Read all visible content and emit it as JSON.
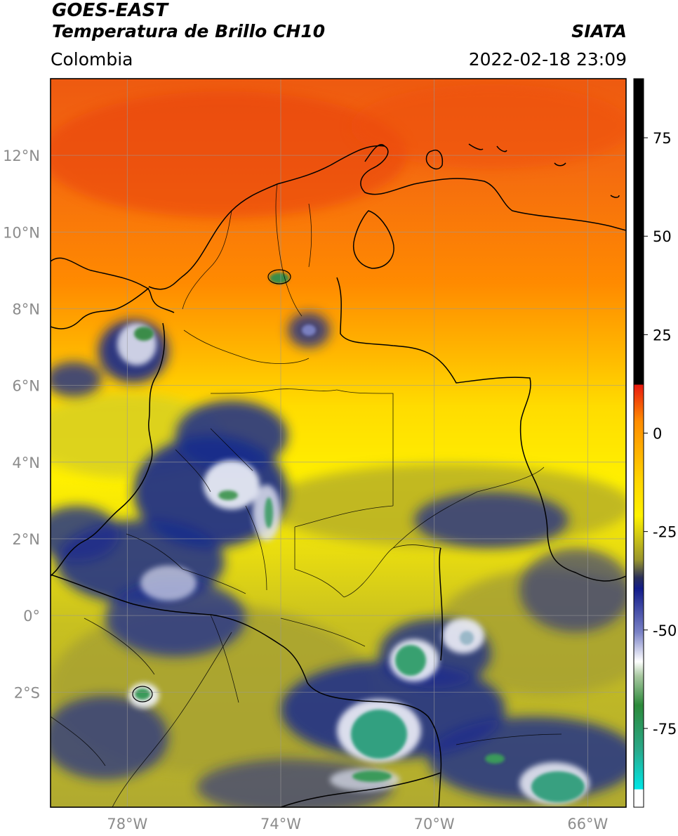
{
  "header": {
    "satellite": "GOES-EAST",
    "product": "Temperatura de Brillo CH10",
    "region": "Colombia",
    "organization": "SIATA",
    "datetime": "2022-02-18 23:09"
  },
  "map": {
    "extent": {
      "lon": [
        -80,
        -65
      ],
      "lat": [
        -5,
        14
      ]
    },
    "lon_ticks": [
      {
        "value": -78,
        "label": "78°W"
      },
      {
        "value": -74,
        "label": "74°W"
      },
      {
        "value": -70,
        "label": "70°W"
      },
      {
        "value": -66,
        "label": "66°W"
      }
    ],
    "lat_ticks": [
      {
        "value": 12,
        "label": "12°N"
      },
      {
        "value": 10,
        "label": "10°N"
      },
      {
        "value": 8,
        "label": "8°N"
      },
      {
        "value": 6,
        "label": "6°N"
      },
      {
        "value": 4,
        "label": "4°N"
      },
      {
        "value": 2,
        "label": "2°N"
      },
      {
        "value": 0,
        "label": "0°"
      },
      {
        "value": -2,
        "label": "2°S"
      }
    ],
    "gridlines": true
  },
  "colorbar": {
    "range": [
      -95,
      90
    ],
    "ticks": [
      {
        "value": 75,
        "label": "75"
      },
      {
        "value": 50,
        "label": "50"
      },
      {
        "value": 25,
        "label": "25"
      },
      {
        "value": 0,
        "label": "0"
      },
      {
        "value": -25,
        "label": "-25"
      },
      {
        "value": -50,
        "label": "-50"
      },
      {
        "value": -75,
        "label": "-75"
      }
    ]
  },
  "colors": {
    "warm_top": "#f05010",
    "orange": "#ff9a00",
    "yellow": "#ffe800",
    "olive": "#b8b22a",
    "navy": "#1a2a8c",
    "white": "#f4f6fa",
    "green": "#3a9c5a",
    "cyan": "#00e0e0",
    "red": "#e81a10",
    "black": "#000000"
  }
}
